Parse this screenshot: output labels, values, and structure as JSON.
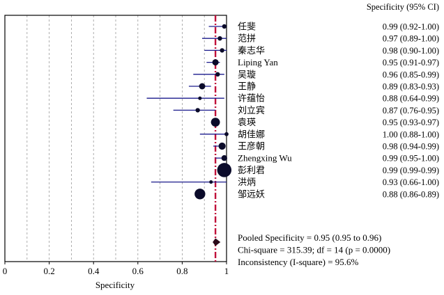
{
  "chart_data": {
    "type": "forest",
    "xlabel": "Specificity",
    "column_header": "Specificity (95% CI)",
    "xlim": [
      0,
      1
    ],
    "xticks": [
      0,
      0.2,
      0.4,
      0.6,
      0.8,
      1
    ],
    "xtick_labels": [
      "0",
      "0.2",
      "0.4",
      "0.6",
      "0.8",
      "1"
    ],
    "studies": [
      {
        "name": "任斐",
        "est": 0.99,
        "lo": 0.92,
        "hi": 1.0,
        "ci_text": "0.99 (0.92-1.00)",
        "weight": 1.0
      },
      {
        "name": "范拼",
        "est": 0.97,
        "lo": 0.89,
        "hi": 1.0,
        "ci_text": "0.97 (0.89-1.00)",
        "weight": 1.0
      },
      {
        "name": "秦志华",
        "est": 0.98,
        "lo": 0.9,
        "hi": 1.0,
        "ci_text": "0.98 (0.90-1.00)",
        "weight": 1.0
      },
      {
        "name": "Liping Yan",
        "est": 0.95,
        "lo": 0.91,
        "hi": 0.97,
        "ci_text": "0.95 (0.91-0.97)",
        "weight": 1.4
      },
      {
        "name": "吴璇",
        "est": 0.96,
        "lo": 0.85,
        "hi": 0.99,
        "ci_text": "0.96 (0.85-0.99)",
        "weight": 1.0
      },
      {
        "name": "王静",
        "est": 0.89,
        "lo": 0.83,
        "hi": 0.93,
        "ci_text": "0.89 (0.83-0.93)",
        "weight": 1.4
      },
      {
        "name": "许蕴怡",
        "est": 0.88,
        "lo": 0.64,
        "hi": 0.99,
        "ci_text": "0.88 (0.64-0.99)",
        "weight": 0.8
      },
      {
        "name": "刘立宾",
        "est": 0.87,
        "lo": 0.76,
        "hi": 0.95,
        "ci_text": "0.87 (0.76-0.95)",
        "weight": 1.0
      },
      {
        "name": "袁瑛",
        "est": 0.95,
        "lo": 0.93,
        "hi": 0.97,
        "ci_text": "0.95 (0.93-0.97)",
        "weight": 2.0
      },
      {
        "name": "胡佳娜",
        "est": 1.0,
        "lo": 0.88,
        "hi": 1.0,
        "ci_text": "1.00 (0.88-1.00)",
        "weight": 0.9
      },
      {
        "name": "王彦朝",
        "est": 0.98,
        "lo": 0.94,
        "hi": 0.99,
        "ci_text": "0.98 (0.94-0.99)",
        "weight": 1.6
      },
      {
        "name": "Zhengxing Wu",
        "est": 0.99,
        "lo": 0.95,
        "hi": 1.0,
        "ci_text": "0.99 (0.95-1.00)",
        "weight": 1.3
      },
      {
        "name": "彭利君",
        "est": 0.99,
        "lo": 0.99,
        "hi": 0.99,
        "ci_text": "0.99 (0.99-0.99)",
        "weight": 3.2
      },
      {
        "name": "洪炳",
        "est": 0.93,
        "lo": 0.66,
        "hi": 1.0,
        "ci_text": "0.93 (0.66-1.00)",
        "weight": 0.8
      },
      {
        "name": "邹远妖",
        "est": 0.88,
        "lo": 0.86,
        "hi": 0.89,
        "ci_text": "0.88 (0.86-0.89)",
        "weight": 2.4
      }
    ],
    "pooled": {
      "est": 0.95,
      "lo": 0.95,
      "hi": 0.96
    },
    "summary_lines": [
      "Pooled Specificity = 0.95 (0.95 to 0.96)",
      "Chi-square = 315.39; df = 14 (p = 0.0000)",
      "Inconsistency (I-square) = 95.6%"
    ],
    "colors": {
      "marker": "#0b0b2a",
      "ci_line": "#1a1a8c",
      "pooled_line": "#c0103a",
      "pooled_diamond": "#2b0a1a",
      "grid": "#9a9a9a"
    }
  }
}
